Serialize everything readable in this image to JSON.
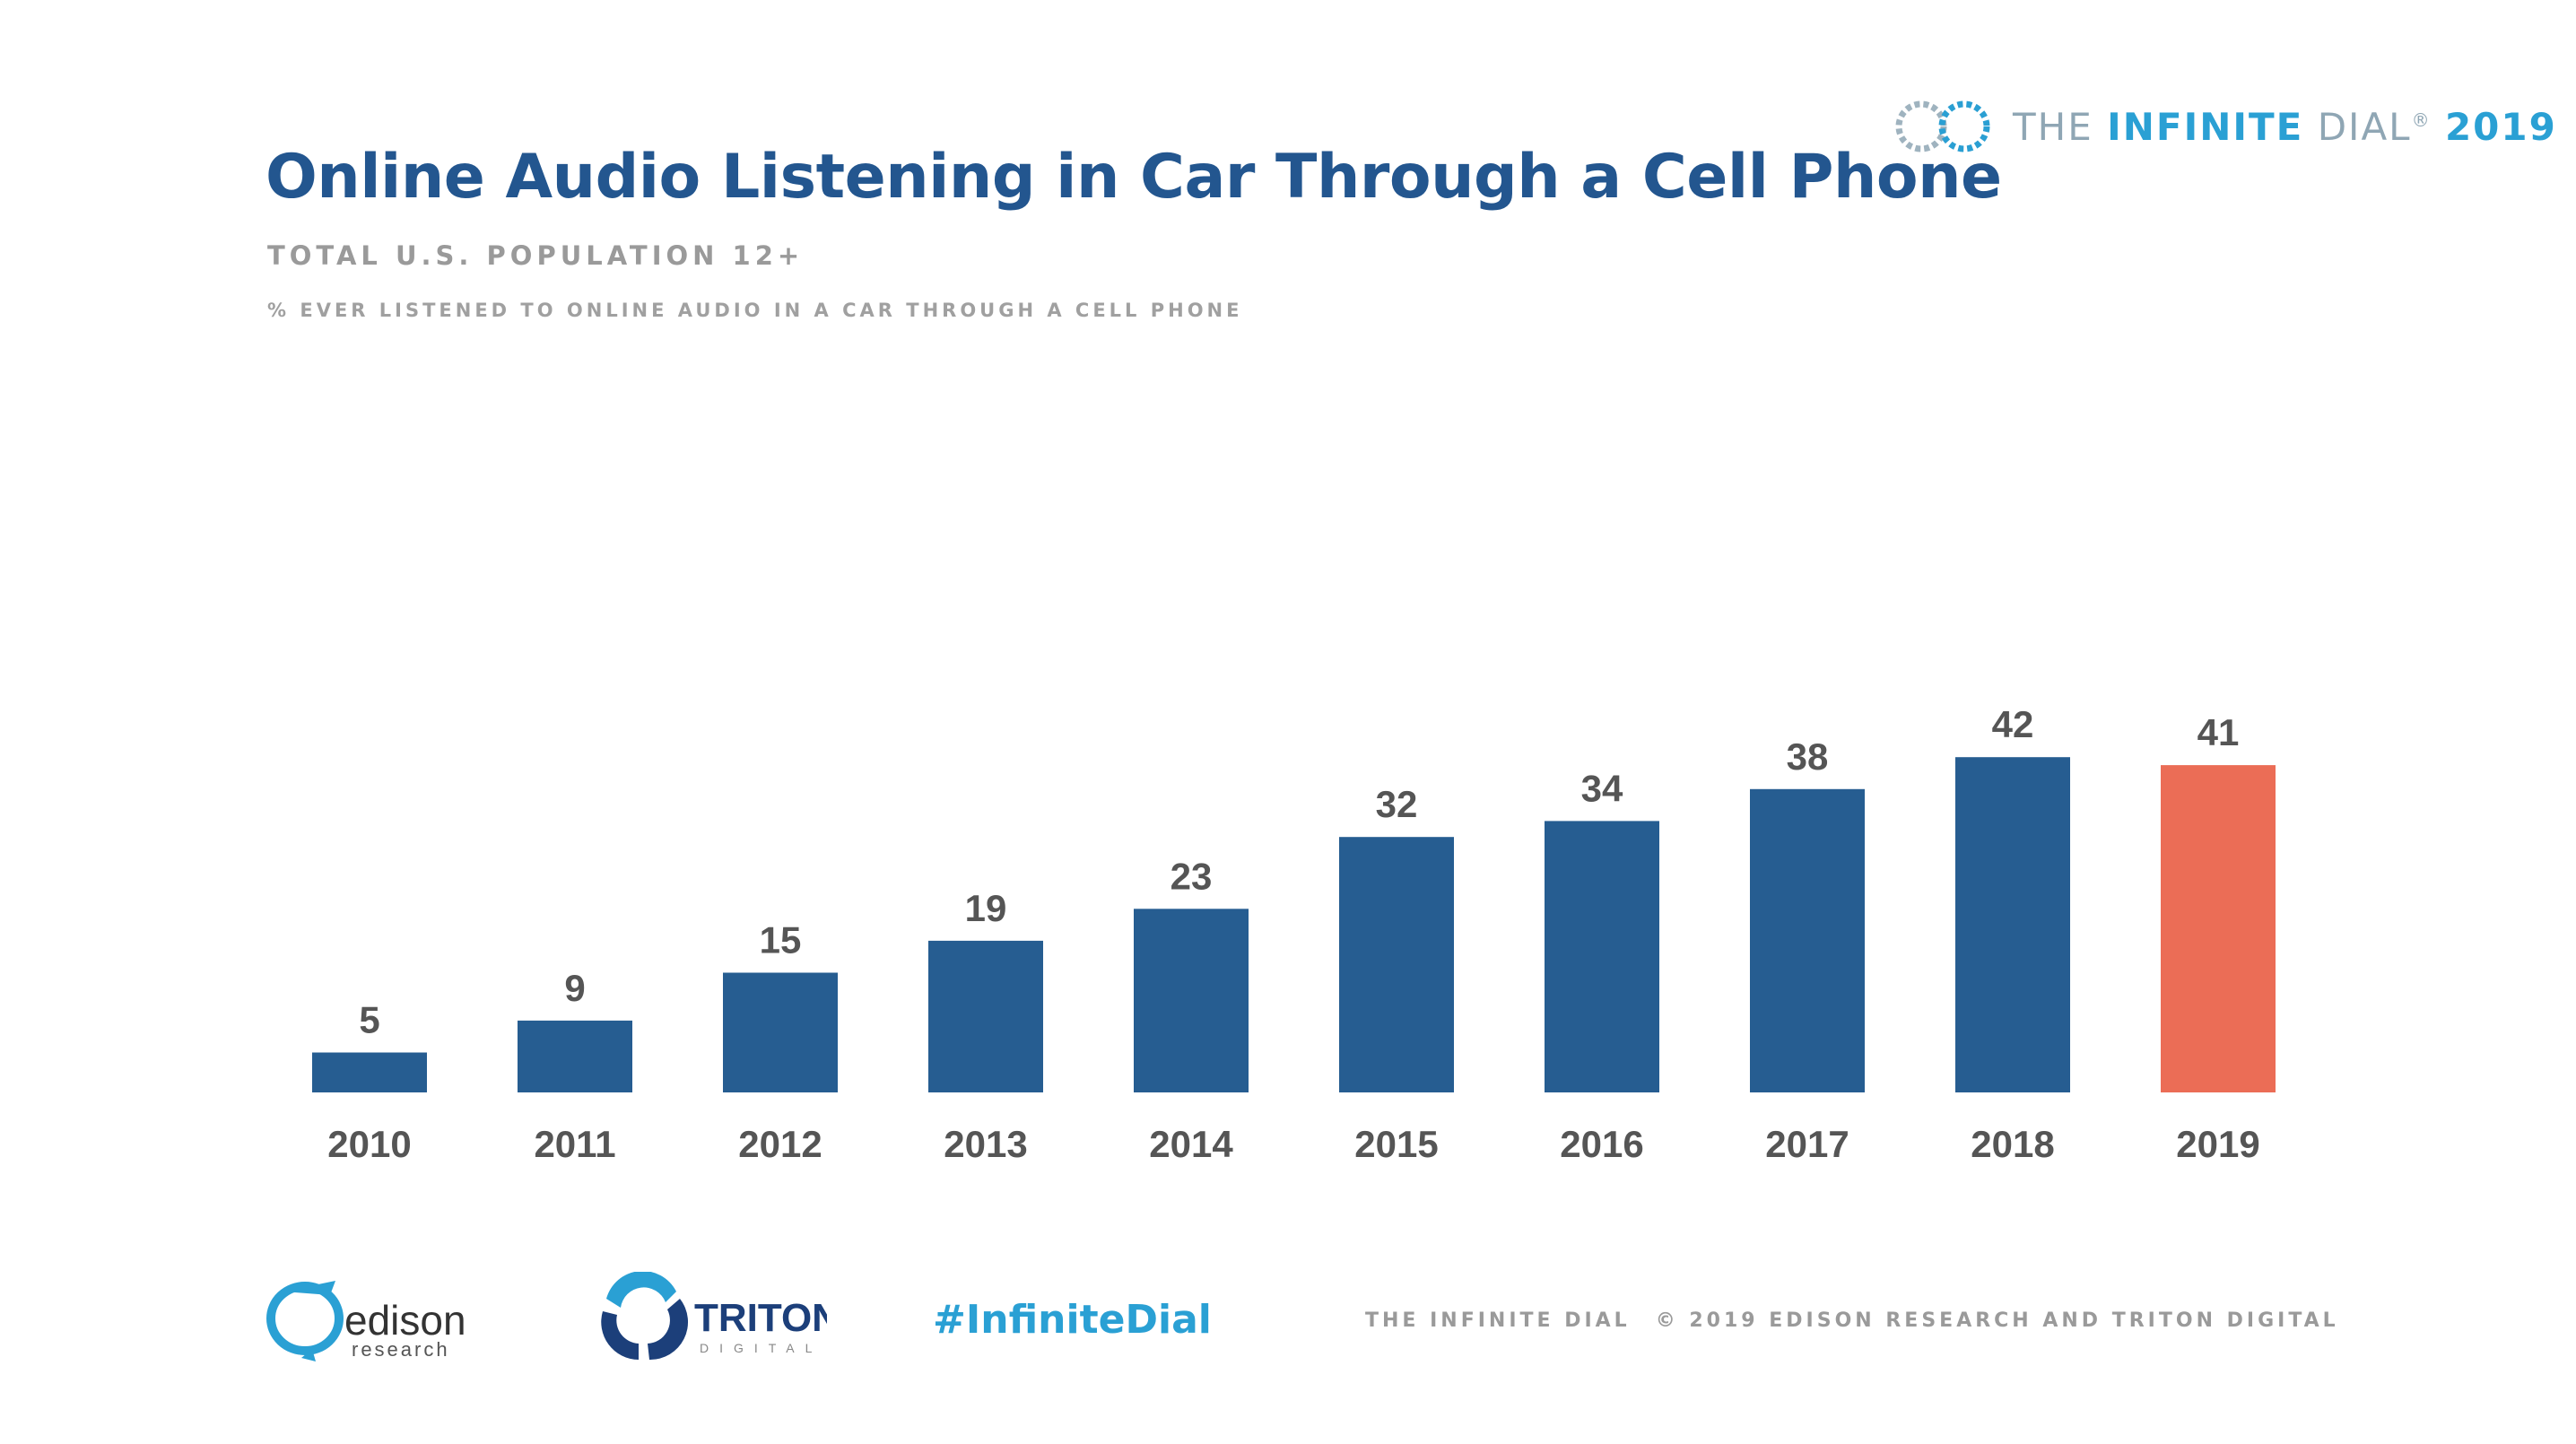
{
  "header": {
    "title": "Online Audio Listening in Car Through a Cell Phone",
    "subtitle": "TOTAL U.S. POPULATION 12+",
    "description": "% EVER LISTENED TO ONLINE AUDIO IN A CAR THROUGH A CELL PHONE"
  },
  "brand": {
    "the": "THE",
    "infinite": "INFINITE",
    "dial": "DIAL",
    "registered": "®",
    "year": "2019",
    "icon": "infinity-logo-icon"
  },
  "footer": {
    "edison_logo": "edison research",
    "triton_logo": "TRITON DIGITAL",
    "hashtag": "#InfiniteDial",
    "left_text": "THE INFINITE DIAL",
    "right_text": "© 2019 EDISON RESEARCH AND TRITON DIGITAL"
  },
  "colors": {
    "bar": "#265d91",
    "highlight": "#eb6d56",
    "title": "#23568f",
    "accent": "#2aa0d4",
    "label": "#555555"
  },
  "chart_data": {
    "type": "bar",
    "title": "Online Audio Listening in Car Through a Cell Phone",
    "subtitle": "TOTAL U.S. POPULATION 12+",
    "ylabel": "",
    "xlabel": "",
    "categories": [
      "2010",
      "2011",
      "2012",
      "2013",
      "2014",
      "2015",
      "2016",
      "2017",
      "2018",
      "2019"
    ],
    "values": [
      5,
      9,
      15,
      19,
      23,
      32,
      34,
      38,
      42,
      41
    ],
    "highlight_index": 9,
    "ylim": [
      0,
      42
    ],
    "grid": false,
    "legend": "none",
    "data_labels": true
  }
}
